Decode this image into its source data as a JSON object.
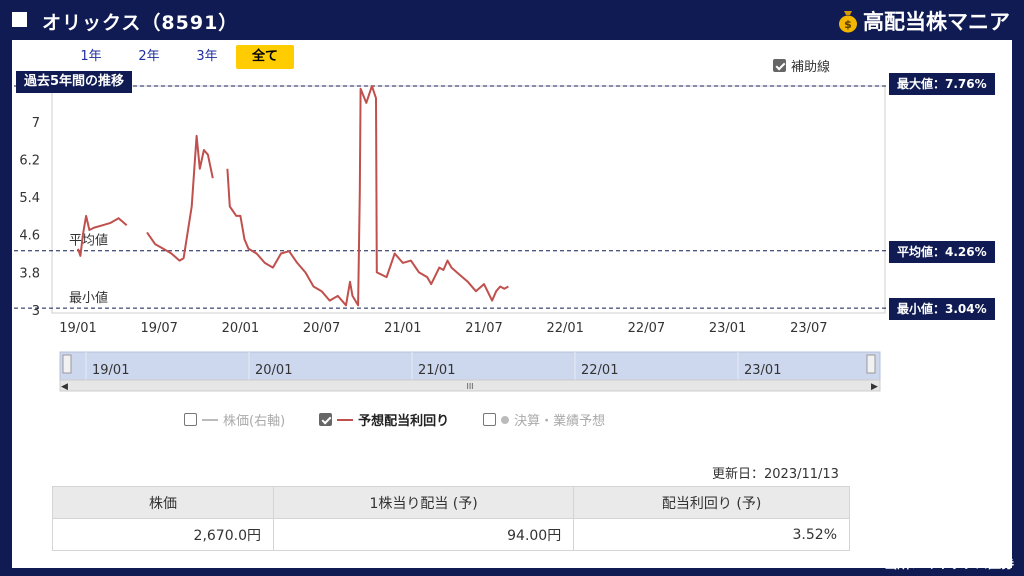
{
  "header": {
    "title": "オリックス（8591）",
    "brand": "高配当株マニア"
  },
  "tabs": [
    "1年",
    "2年",
    "3年",
    "全て"
  ],
  "active_tab": "全て",
  "aux_line": {
    "label": "補助線",
    "checked": true
  },
  "chart_title": "過去5年間の推移",
  "flags": {
    "max": "最大値：7.76%",
    "avg": "平均値：4.26%",
    "min": "最小値：3.04%"
  },
  "inline_labels": {
    "avg": "平均値",
    "min": "最小値"
  },
  "navigator_labels": [
    "19/01",
    "20/01",
    "21/01",
    "22/01",
    "23/01"
  ],
  "legend": [
    {
      "label": "株価(右軸)",
      "on": false,
      "marker": "line"
    },
    {
      "label": "予想配当利回り",
      "on": true,
      "marker": "line"
    },
    {
      "label": "決算・業績予想",
      "on": false,
      "marker": "dot"
    }
  ],
  "updated": "更新日：2023/11/13",
  "table": {
    "headers": [
      "株価",
      "1株当り配当 (予)",
      "配当利回り (予)"
    ],
    "values": [
      "2,670.0円",
      "94.00円",
      "3.52%"
    ]
  },
  "source": "出所：マネックス証券",
  "chart_data": {
    "type": "line",
    "title": "過去5年間の推移",
    "xlabel": "",
    "ylabel": "",
    "x_ticks": [
      "19/01",
      "19/07",
      "20/01",
      "20/07",
      "21/01",
      "21/07",
      "22/01",
      "22/07",
      "23/01",
      "23/07"
    ],
    "y_ticks": [
      3,
      3.8,
      4.6,
      5.4,
      6.2,
      7
    ],
    "ylim": [
      3,
      7.76
    ],
    "reference_lines": {
      "max": 7.76,
      "average": 4.26,
      "min": 3.04
    },
    "color": "#c0504d",
    "series": [
      {
        "segments": [
          [
            [
              0,
              4.3
            ],
            [
              0.03,
              4.15
            ],
            [
              0.06,
              4.6
            ],
            [
              0.1,
              5.0
            ],
            [
              0.14,
              4.7
            ],
            [
              0.2,
              4.75
            ],
            [
              0.3,
              4.8
            ],
            [
              0.4,
              4.85
            ],
            [
              0.5,
              4.95
            ],
            [
              0.6,
              4.8
            ]
          ],
          [
            [
              0.85,
              4.65
            ],
            [
              0.95,
              4.4
            ],
            [
              1.05,
              4.3
            ],
            [
              1.15,
              4.2
            ],
            [
              1.25,
              4.05
            ],
            [
              1.3,
              4.1
            ],
            [
              1.4,
              5.2
            ],
            [
              1.46,
              6.7
            ],
            [
              1.5,
              6.0
            ],
            [
              1.55,
              6.4
            ],
            [
              1.6,
              6.3
            ],
            [
              1.66,
              5.8
            ]
          ],
          [
            [
              1.84,
              6.0
            ],
            [
              1.87,
              5.2
            ],
            [
              1.95,
              5.0
            ],
            [
              2.0,
              5.0
            ],
            [
              2.05,
              4.5
            ],
            [
              2.1,
              4.3
            ],
            [
              2.2,
              4.2
            ],
            [
              2.3,
              4.0
            ],
            [
              2.4,
              3.9
            ],
            [
              2.5,
              4.2
            ],
            [
              2.6,
              4.25
            ],
            [
              2.7,
              4.0
            ],
            [
              2.8,
              3.8
            ],
            [
              2.9,
              3.5
            ],
            [
              3.0,
              3.4
            ],
            [
              3.1,
              3.2
            ],
            [
              3.2,
              3.3
            ],
            [
              3.3,
              3.1
            ],
            [
              3.35,
              3.6
            ],
            [
              3.38,
              3.3
            ],
            [
              3.45,
              3.1
            ],
            [
              3.47,
              5.5
            ],
            [
              3.48,
              7.7
            ],
            [
              3.55,
              7.4
            ],
            [
              3.62,
              7.76
            ],
            [
              3.67,
              7.5
            ],
            [
              3.68,
              3.8
            ],
            [
              3.8,
              3.7
            ],
            [
              3.9,
              4.2
            ],
            [
              4.0,
              4.0
            ],
            [
              4.1,
              4.05
            ],
            [
              4.2,
              3.8
            ],
            [
              4.3,
              3.7
            ],
            [
              4.35,
              3.55
            ],
            [
              4.45,
              3.9
            ],
            [
              4.5,
              3.85
            ],
            [
              4.55,
              4.05
            ],
            [
              4.6,
              3.9
            ],
            [
              4.7,
              3.75
            ],
            [
              4.8,
              3.6
            ],
            [
              4.9,
              3.4
            ],
            [
              5.0,
              3.55
            ],
            [
              5.1,
              3.2
            ],
            [
              5.15,
              3.4
            ],
            [
              5.2,
              3.5
            ],
            [
              5.25,
              3.45
            ],
            [
              5.3,
              3.5
            ]
          ]
        ]
      }
    ]
  }
}
